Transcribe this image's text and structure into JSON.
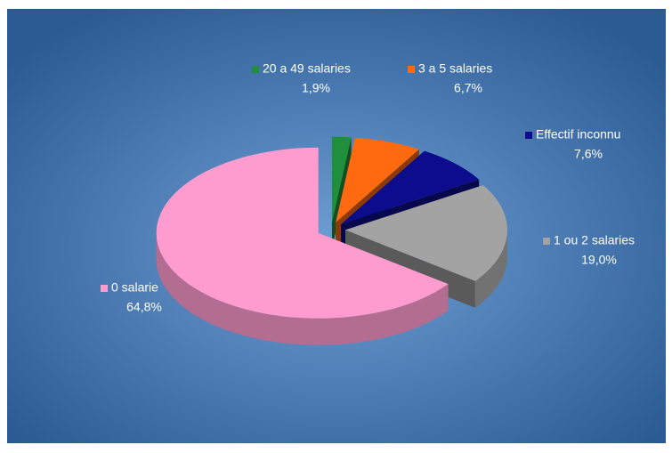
{
  "chart_data": {
    "type": "pie",
    "categories": [
      "20 a 49 salaries",
      "3 a 5 salaries",
      "Effectif inconnu",
      "1 ou 2 salaries",
      "0 salarie"
    ],
    "values": [
      1.9,
      6.7,
      7.6,
      19.0,
      64.8
    ],
    "value_labels": [
      "1,9%",
      "6,7%",
      "7,6%",
      "19,0%",
      "64,8%"
    ],
    "colors": [
      "#1f8f3c",
      "#ff6a10",
      "#0c0c8c",
      "#a3a3a3",
      "#ff9ccf"
    ]
  }
}
